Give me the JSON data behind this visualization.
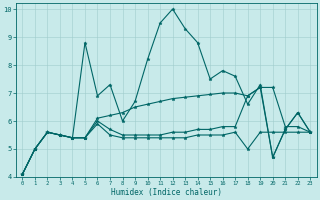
{
  "xlabel": "Humidex (Indice chaleur)",
  "xlim": [
    -0.5,
    23.5
  ],
  "ylim": [
    4,
    10.2
  ],
  "yticks": [
    4,
    5,
    6,
    7,
    8,
    9,
    10
  ],
  "xticks": [
    0,
    1,
    2,
    3,
    4,
    5,
    6,
    7,
    8,
    9,
    10,
    11,
    12,
    13,
    14,
    15,
    16,
    17,
    18,
    19,
    20,
    21,
    22,
    23
  ],
  "bg_color": "#c8eaea",
  "line_color": "#006666",
  "grid_color": "#a0cccc",
  "lines": [
    [
      4.1,
      5.0,
      5.6,
      5.5,
      5.4,
      8.8,
      6.9,
      7.3,
      6.0,
      6.7,
      8.2,
      9.5,
      10.0,
      9.3,
      8.8,
      7.5,
      7.8,
      7.6,
      6.6,
      7.3,
      4.7,
      5.7,
      6.3,
      5.6
    ],
    [
      4.1,
      5.0,
      5.6,
      5.5,
      5.4,
      5.4,
      6.1,
      6.2,
      6.3,
      6.5,
      6.6,
      6.7,
      6.8,
      6.85,
      6.9,
      6.95,
      7.0,
      7.0,
      6.9,
      7.2,
      7.2,
      5.8,
      5.8,
      5.6
    ],
    [
      4.1,
      5.0,
      5.6,
      5.5,
      5.4,
      5.4,
      6.0,
      5.7,
      5.5,
      5.5,
      5.5,
      5.5,
      5.6,
      5.6,
      5.7,
      5.7,
      5.8,
      5.8,
      6.9,
      7.2,
      4.7,
      5.7,
      6.3,
      5.6
    ],
    [
      4.1,
      5.0,
      5.6,
      5.5,
      5.4,
      5.4,
      5.9,
      5.5,
      5.4,
      5.4,
      5.4,
      5.4,
      5.4,
      5.4,
      5.5,
      5.5,
      5.5,
      5.6,
      5.0,
      5.6,
      5.6,
      5.6,
      5.6,
      5.6
    ]
  ]
}
